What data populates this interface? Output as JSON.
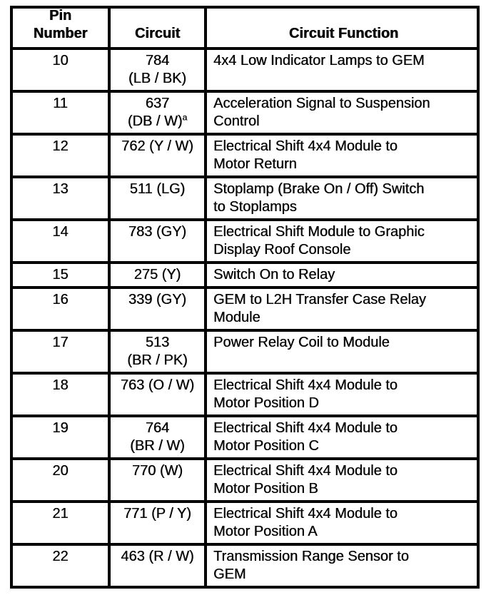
{
  "table": {
    "headers": [
      {
        "id": "pin",
        "label": "Pin\nNumber"
      },
      {
        "id": "circuit",
        "label": "Circuit"
      },
      {
        "id": "function",
        "label": "Circuit Function"
      }
    ],
    "rows": [
      {
        "pin": "10",
        "circuit": "784\n(LB / BK)",
        "function": "4x4 Low Indicator Lamps to GEM"
      },
      {
        "pin": "11",
        "circuit": "637\n(DB / W)",
        "circuit_sup": "a",
        "function": "Acceleration Signal to Suspension\nControl"
      },
      {
        "pin": "12",
        "circuit": "762 (Y / W)",
        "function": "Electrical Shift 4x4 Module to\nMotor Return"
      },
      {
        "pin": "13",
        "circuit": "511 (LG)",
        "function": "Stoplamp (Brake On / Off) Switch\nto Stoplamps"
      },
      {
        "pin": "14",
        "circuit": "783 (GY)",
        "function": "Electrical Shift Module to Graphic\nDisplay Roof Console"
      },
      {
        "pin": "15",
        "circuit": "275 (Y)",
        "function": "Switch On to Relay"
      },
      {
        "pin": "16",
        "circuit": "339 (GY)",
        "function": "GEM to L2H Transfer Case Relay\nModule"
      },
      {
        "pin": "17",
        "circuit": "513\n(BR / PK)",
        "function": "Power Relay Coil to Module"
      },
      {
        "pin": "18",
        "circuit": "763 (O / W)",
        "function": "Electrical Shift 4x4 Module to\nMotor Position D"
      },
      {
        "pin": "19",
        "circuit": "764\n(BR / W)",
        "function": "Electrical Shift 4x4 Module to\nMotor Position C"
      },
      {
        "pin": "20",
        "circuit": "770 (W)",
        "function": "Electrical Shift 4x4 Module to\nMotor Position B"
      },
      {
        "pin": "21",
        "circuit": "771 (P / Y)",
        "function": "Electrical Shift 4x4 Module to\nMotor Position A"
      },
      {
        "pin": "22",
        "circuit": "463 (R / W)",
        "function": "Transmission Range Sensor to\nGEM"
      }
    ],
    "colors": {
      "border": "#000000",
      "text": "#070707",
      "background": "#ffffff"
    }
  }
}
